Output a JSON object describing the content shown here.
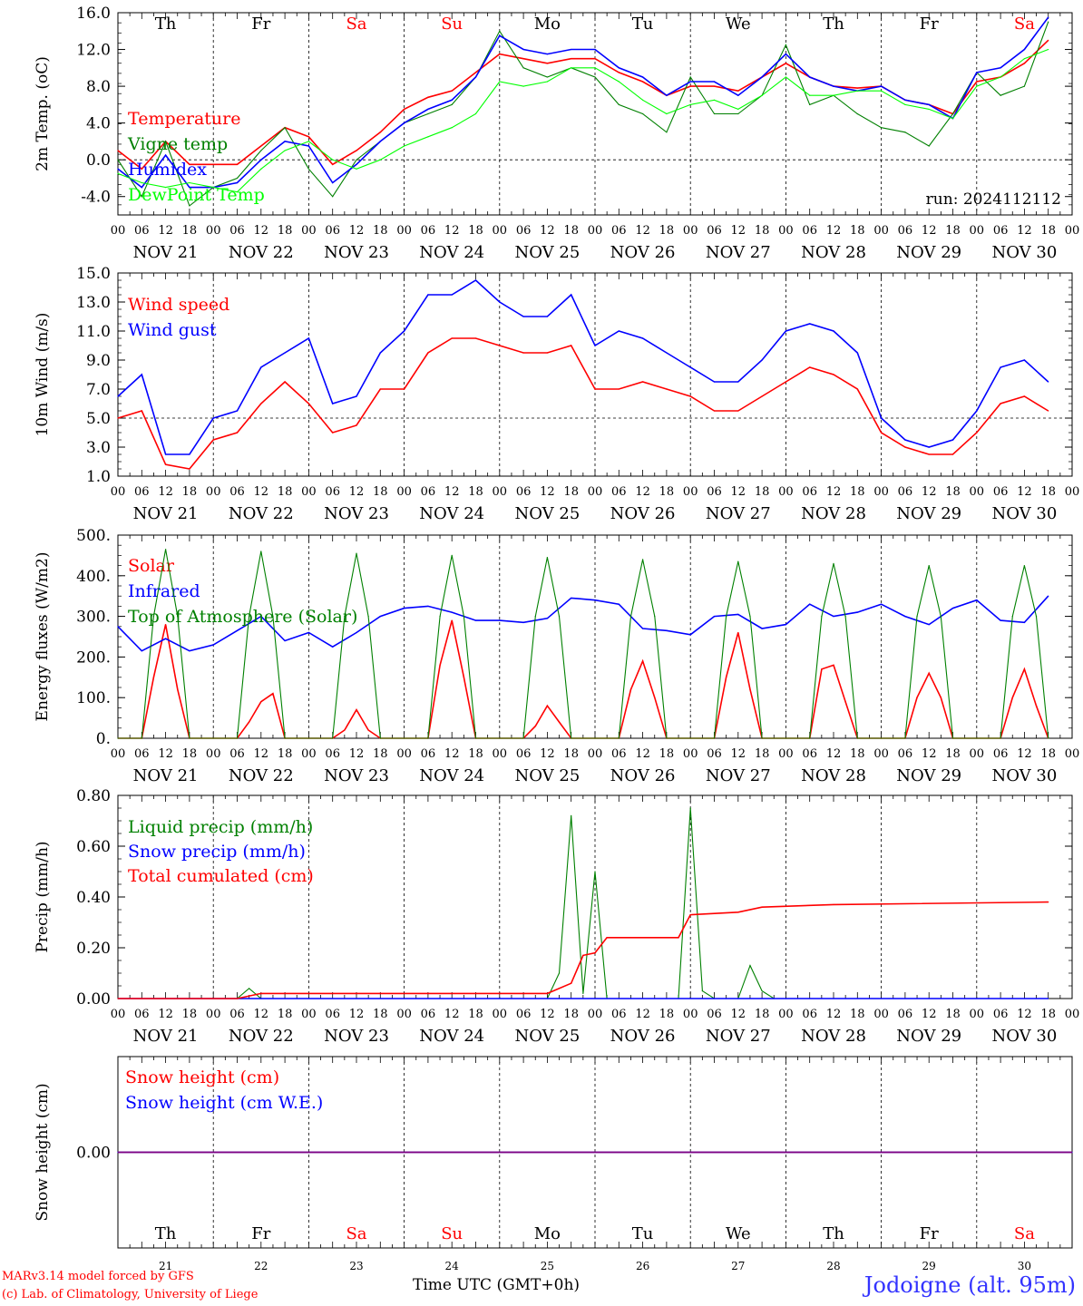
{
  "station_title": "Jodoigne (alt. 95m)",
  "footer": {
    "line1": "MARv3.14 model forced by GFS",
    "line2": "(c) Lab. of Climatology, University of Liege"
  },
  "x_axis_title": "Time UTC (GMT+0h)",
  "colors": {
    "red": "#ff0000",
    "green": "#008000",
    "blue": "#0000ff",
    "lime": "#00ff00",
    "purple": "#800080"
  },
  "days": {
    "abbr": [
      "Th",
      "Fr",
      "Sa",
      "Su",
      "Mo",
      "Tu",
      "We",
      "Th",
      "Fr",
      "Sa"
    ],
    "abbr_colors": [
      "#000000",
      "#000000",
      "#ff0000",
      "#ff0000",
      "#000000",
      "#000000",
      "#000000",
      "#000000",
      "#000000",
      "#ff0000"
    ],
    "dates": [
      "NOV 21",
      "NOV 22",
      "NOV 23",
      "NOV 24",
      "NOV 25",
      "NOV 26",
      "NOV 27",
      "NOV 28",
      "NOV 29",
      "NOV 30"
    ],
    "nums": [
      "21",
      "22",
      "23",
      "24",
      "25",
      "26",
      "27",
      "28",
      "29",
      "30"
    ],
    "hours": [
      "00",
      "06",
      "12",
      "18"
    ]
  },
  "chart_data": [
    {
      "type": "line",
      "ylabel": "2m Temp. (oC)",
      "ylim": [
        -6,
        16
      ],
      "yticks": [
        "-4.0",
        "0.0",
        "4.0",
        "8.0",
        "12.0",
        "16.0"
      ],
      "x_unit": "hours since NOV 21 00 UTC",
      "annotation": "run: 2024112112",
      "series": [
        {
          "name": "Temperature",
          "color": "#ff0000",
          "x": [
            0,
            6,
            12,
            18,
            24,
            30,
            36,
            42,
            48,
            54,
            60,
            66,
            72,
            78,
            84,
            90,
            96,
            102,
            108,
            114,
            120,
            126,
            132,
            138,
            144,
            150,
            156,
            162,
            168,
            174,
            180,
            186,
            192,
            198,
            204,
            210,
            216,
            222,
            228,
            234
          ],
          "values": [
            1.0,
            -1.0,
            2.0,
            -0.5,
            -0.5,
            -0.5,
            1.5,
            3.5,
            2.5,
            -0.5,
            1.0,
            3.0,
            5.5,
            6.8,
            7.5,
            9.5,
            11.5,
            11.0,
            10.5,
            11.0,
            11.0,
            9.5,
            8.5,
            7.0,
            8.0,
            8.0,
            7.5,
            9.0,
            10.5,
            9.0,
            8.0,
            7.8,
            8.0,
            6.5,
            6.0,
            5.0,
            8.5,
            9.0,
            10.5,
            13.0
          ]
        },
        {
          "name": "Vigne temp",
          "color": "#008000",
          "x": [
            0,
            6,
            12,
            18,
            24,
            30,
            36,
            42,
            48,
            54,
            60,
            66,
            72,
            78,
            84,
            90,
            96,
            102,
            108,
            114,
            120,
            126,
            132,
            138,
            144,
            150,
            156,
            162,
            168,
            174,
            180,
            186,
            192,
            198,
            204,
            210,
            216,
            222,
            228,
            234
          ],
          "values": [
            0.0,
            -4.0,
            2.0,
            -5.0,
            -3.0,
            -2.0,
            1.0,
            3.5,
            -1.0,
            -4.0,
            0.0,
            2.0,
            4.0,
            5.0,
            6.0,
            9.0,
            14.0,
            10.0,
            9.0,
            10.0,
            9.0,
            6.0,
            5.0,
            3.0,
            9.0,
            5.0,
            5.0,
            7.0,
            12.5,
            6.0,
            7.0,
            5.0,
            3.5,
            3.0,
            1.5,
            5.0,
            9.5,
            7.0,
            8.0,
            15.0
          ]
        },
        {
          "name": "Humidex",
          "color": "#0000ff",
          "x": [
            0,
            6,
            12,
            18,
            24,
            30,
            36,
            42,
            48,
            54,
            60,
            66,
            72,
            78,
            84,
            90,
            96,
            102,
            108,
            114,
            120,
            126,
            132,
            138,
            144,
            150,
            156,
            162,
            168,
            174,
            180,
            186,
            192,
            198,
            204,
            210,
            216,
            222,
            228,
            234
          ],
          "values": [
            -1.0,
            -3.0,
            0.5,
            -3.0,
            -3.0,
            -2.5,
            0.0,
            2.0,
            1.5,
            -2.5,
            -0.5,
            2.0,
            4.0,
            5.5,
            6.5,
            9.0,
            13.5,
            12.0,
            11.5,
            12.0,
            12.0,
            10.0,
            9.0,
            7.0,
            8.5,
            8.5,
            7.0,
            9.0,
            11.5,
            9.0,
            8.0,
            7.5,
            8.0,
            6.5,
            6.0,
            4.5,
            9.5,
            10.0,
            12.0,
            15.5
          ]
        },
        {
          "name": "DewPoint Temp",
          "color": "#00ff00",
          "x": [
            0,
            6,
            12,
            18,
            24,
            30,
            36,
            42,
            48,
            54,
            60,
            66,
            72,
            78,
            84,
            90,
            96,
            102,
            108,
            114,
            120,
            126,
            132,
            138,
            144,
            150,
            156,
            162,
            168,
            174,
            180,
            186,
            192,
            198,
            204,
            210,
            216,
            222,
            228,
            234
          ],
          "values": [
            -1.5,
            -2.5,
            -3.0,
            -2.5,
            -3.0,
            -3.5,
            -1.0,
            1.0,
            2.0,
            0.0,
            -1.0,
            0.0,
            1.5,
            2.5,
            3.5,
            5.0,
            8.5,
            8.0,
            8.5,
            10.0,
            10.0,
            8.5,
            6.5,
            5.0,
            6.0,
            6.5,
            5.5,
            7.0,
            9.0,
            7.0,
            7.0,
            7.5,
            7.5,
            6.0,
            5.5,
            4.5,
            8.0,
            9.0,
            11.0,
            12.0
          ]
        }
      ]
    },
    {
      "type": "line",
      "ylabel": "10m Wind (m/s)",
      "ylim": [
        1,
        15
      ],
      "yticks": [
        "1.0",
        "3.0",
        "5.0",
        "7.0",
        "9.0",
        "11.0",
        "13.0",
        "15.0"
      ],
      "series": [
        {
          "name": "Wind speed",
          "color": "#ff0000",
          "x": [
            0,
            6,
            12,
            18,
            24,
            30,
            36,
            42,
            48,
            54,
            60,
            66,
            72,
            78,
            84,
            90,
            96,
            102,
            108,
            114,
            120,
            126,
            132,
            138,
            144,
            150,
            156,
            162,
            168,
            174,
            180,
            186,
            192,
            198,
            204,
            210,
            216,
            222,
            228,
            234
          ],
          "values": [
            5.0,
            5.5,
            1.8,
            1.5,
            3.5,
            4.0,
            6.0,
            7.5,
            6.0,
            4.0,
            4.5,
            7.0,
            7.0,
            9.5,
            10.5,
            10.5,
            10.0,
            9.5,
            9.5,
            10.0,
            7.0,
            7.0,
            7.5,
            7.0,
            6.5,
            5.5,
            5.5,
            6.5,
            7.5,
            8.5,
            8.0,
            7.0,
            4.0,
            3.0,
            2.5,
            2.5,
            4.0,
            6.0,
            6.5,
            5.5
          ]
        },
        {
          "name": "Wind gust",
          "color": "#0000ff",
          "x": [
            0,
            6,
            12,
            18,
            24,
            30,
            36,
            42,
            48,
            54,
            60,
            66,
            72,
            78,
            84,
            90,
            96,
            102,
            108,
            114,
            120,
            126,
            132,
            138,
            144,
            150,
            156,
            162,
            168,
            174,
            180,
            186,
            192,
            198,
            204,
            210,
            216,
            222,
            228,
            234
          ],
          "values": [
            6.5,
            8.0,
            2.5,
            2.5,
            5.0,
            5.5,
            8.5,
            9.5,
            10.5,
            6.0,
            6.5,
            9.5,
            11.0,
            13.5,
            13.5,
            14.5,
            13.0,
            12.0,
            12.0,
            13.5,
            10.0,
            11.0,
            10.5,
            9.5,
            8.5,
            7.5,
            7.5,
            9.0,
            11.0,
            11.5,
            11.0,
            9.5,
            5.0,
            3.5,
            3.0,
            3.5,
            5.5,
            8.5,
            9.0,
            7.5
          ]
        }
      ]
    },
    {
      "type": "line",
      "ylabel": "Energy fluxes (W/m2)",
      "ylim": [
        0,
        500
      ],
      "yticks": [
        "0.",
        "100.",
        "200.",
        "300.",
        "400.",
        "500."
      ],
      "series": [
        {
          "name": "Solar",
          "color": "#ff0000",
          "x": [
            0,
            6,
            9,
            12,
            15,
            18,
            24,
            30,
            33,
            36,
            39,
            42,
            48,
            54,
            57,
            60,
            63,
            66,
            72,
            78,
            81,
            84,
            87,
            90,
            96,
            102,
            105,
            108,
            111,
            114,
            120,
            126,
            129,
            132,
            135,
            138,
            144,
            150,
            153,
            156,
            159,
            162,
            168,
            174,
            177,
            180,
            183,
            186,
            192,
            198,
            201,
            204,
            207,
            210,
            216,
            222,
            225,
            228,
            231,
            234
          ],
          "values": [
            0,
            0,
            150,
            280,
            120,
            0,
            0,
            0,
            40,
            90,
            110,
            0,
            0,
            0,
            20,
            70,
            20,
            0,
            0,
            0,
            180,
            290,
            150,
            0,
            0,
            0,
            30,
            80,
            40,
            0,
            0,
            0,
            120,
            190,
            100,
            0,
            0,
            0,
            150,
            260,
            120,
            0,
            0,
            0,
            170,
            180,
            90,
            0,
            0,
            0,
            100,
            160,
            100,
            0,
            0,
            0,
            100,
            170,
            80,
            0
          ]
        },
        {
          "name": "Infrared",
          "color": "#0000ff",
          "x": [
            0,
            6,
            12,
            18,
            24,
            30,
            36,
            42,
            48,
            54,
            60,
            66,
            72,
            78,
            84,
            90,
            96,
            102,
            108,
            114,
            120,
            126,
            132,
            138,
            144,
            150,
            156,
            162,
            168,
            174,
            180,
            186,
            192,
            198,
            204,
            210,
            216,
            222,
            228,
            234
          ],
          "values": [
            275,
            215,
            245,
            215,
            230,
            265,
            300,
            240,
            260,
            225,
            260,
            300,
            320,
            325,
            310,
            290,
            290,
            285,
            295,
            345,
            340,
            330,
            270,
            265,
            255,
            300,
            305,
            270,
            280,
            330,
            300,
            310,
            330,
            300,
            280,
            320,
            340,
            290,
            285,
            350
          ]
        },
        {
          "name": "Top of Atmosphere (Solar)",
          "color": "#008000",
          "x": [
            0,
            6,
            9,
            12,
            15,
            18,
            24,
            30,
            33,
            36,
            39,
            42,
            48,
            54,
            57,
            60,
            63,
            66,
            72,
            78,
            81,
            84,
            87,
            90,
            96,
            102,
            105,
            108,
            111,
            114,
            120,
            126,
            129,
            132,
            135,
            138,
            144,
            150,
            153,
            156,
            159,
            162,
            168,
            174,
            177,
            180,
            183,
            186,
            192,
            198,
            201,
            204,
            207,
            210,
            216,
            222,
            225,
            228,
            231,
            234
          ],
          "values": [
            0,
            0,
            300,
            465,
            300,
            0,
            0,
            0,
            300,
            460,
            300,
            0,
            0,
            0,
            300,
            455,
            300,
            0,
            0,
            0,
            300,
            450,
            300,
            0,
            0,
            0,
            300,
            445,
            300,
            0,
            0,
            0,
            300,
            440,
            300,
            0,
            0,
            0,
            300,
            435,
            300,
            0,
            0,
            0,
            300,
            430,
            300,
            0,
            0,
            0,
            300,
            425,
            300,
            0,
            0,
            0,
            300,
            425,
            300,
            0
          ]
        }
      ]
    },
    {
      "type": "line",
      "ylabel": "Precip (mm/h)",
      "ylim": [
        0,
        0.8
      ],
      "yticks": [
        "0.00",
        "0.20",
        "0.40",
        "0.60",
        "0.80"
      ],
      "series": [
        {
          "name": "Liquid precip (mm/h)",
          "color": "#008000",
          "x": [
            0,
            30,
            33,
            36,
            108,
            111,
            114,
            117,
            120,
            123,
            126,
            129,
            138,
            141,
            144,
            147,
            150,
            153,
            156,
            159,
            162,
            165,
            168,
            180,
            234
          ],
          "values": [
            0,
            0,
            0.04,
            0,
            0,
            0.1,
            0.72,
            0.02,
            0.5,
            0.0,
            0,
            0,
            0,
            0,
            0.75,
            0.03,
            0.0,
            0,
            0,
            0.13,
            0.03,
            0.0,
            0.0,
            0.0,
            0
          ]
        },
        {
          "name": "Snow precip (mm/h)",
          "color": "#0000ff",
          "x": [
            0,
            234
          ],
          "values": [
            0,
            0
          ]
        },
        {
          "name": "Total cumulated (cm)",
          "color": "#ff0000",
          "x": [
            0,
            30,
            36,
            108,
            114,
            117,
            120,
            123,
            138,
            141,
            144,
            156,
            162,
            180,
            234
          ],
          "values": [
            0,
            0,
            0.02,
            0.02,
            0.06,
            0.17,
            0.18,
            0.24,
            0.24,
            0.24,
            0.33,
            0.34,
            0.36,
            0.37,
            0.38
          ]
        }
      ]
    },
    {
      "type": "line",
      "ylabel": "Snow height (cm)",
      "ylim": [
        -1,
        1
      ],
      "yticks": [
        "0.00"
      ],
      "series": [
        {
          "name": "Snow height (cm)",
          "color": "#ff0000",
          "x": [
            0,
            240
          ],
          "values": [
            0,
            0
          ]
        },
        {
          "name": "Snow height (cm W.E.)",
          "color": "#0000ff",
          "x": [
            0,
            240
          ],
          "values": [
            0,
            0
          ]
        }
      ]
    }
  ]
}
